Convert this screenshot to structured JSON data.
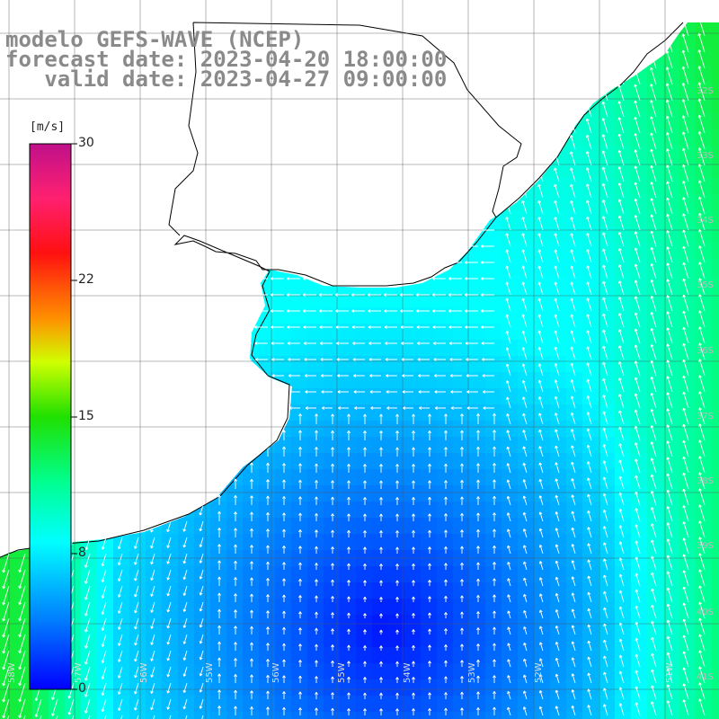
{
  "title": {
    "line1": "modelo GEFS-WAVE (NCEP)",
    "line2": "forecast date: 2023-04-20 18:00:00",
    "line3": "   valid date: 2023-04-27 09:00:00"
  },
  "colorbar": {
    "unit": "[m/s]",
    "min": 0,
    "max": 30,
    "ticks": [
      "30",
      "22",
      "15",
      "8",
      "0"
    ],
    "tick_values": [
      30,
      22,
      15,
      8,
      0
    ],
    "colors": [
      "#0000ff",
      "#0080ff",
      "#00c8ff",
      "#00ffee",
      "#00ff60",
      "#40e000",
      "#ffff00",
      "#ff8000",
      "#ff0000",
      "#ff2080",
      "#c0108a"
    ]
  },
  "map": {
    "land_color": "#ffffff",
    "grid": true,
    "lat_labels": [
      "32S",
      "33S",
      "34S",
      "35S",
      "36S",
      "37S",
      "38S",
      "39S",
      "40S",
      "41S"
    ],
    "lon_labels": [
      "58W",
      "57W",
      "56W",
      "55W",
      "56W",
      "55W",
      "54W",
      "53W",
      "52W",
      "51W"
    ]
  }
}
